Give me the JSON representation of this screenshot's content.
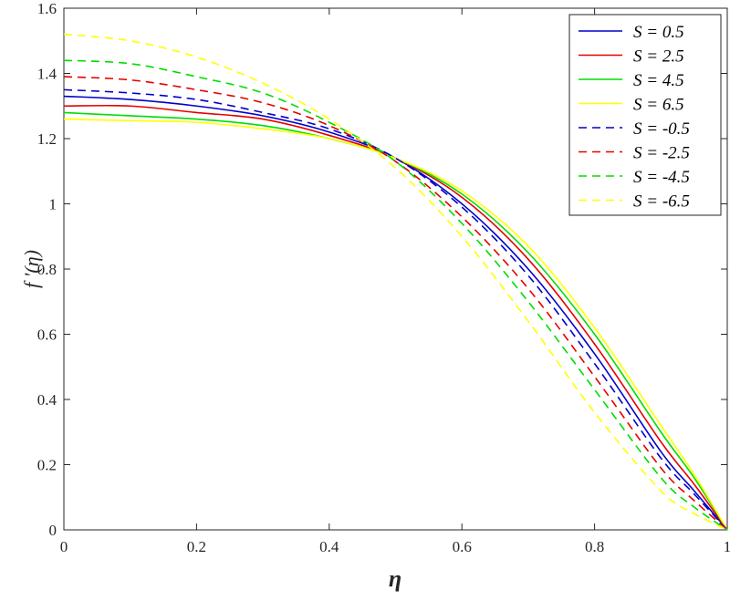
{
  "chart_data": {
    "type": "line",
    "title": "",
    "xlabel": "η",
    "ylabel": "f '(η)",
    "xlim": [
      0,
      1
    ],
    "ylim": [
      0,
      1.6
    ],
    "x_ticks": [
      "0",
      "0.2",
      "0.4",
      "0.6",
      "0.8",
      "1"
    ],
    "y_ticks": [
      "0",
      "0.2",
      "0.4",
      "0.6",
      "0.8",
      "1",
      "1.2",
      "1.4",
      "1.6"
    ],
    "grid": false,
    "legend_position": "top-right",
    "x": [
      0,
      0.1,
      0.2,
      0.3,
      0.4,
      0.5,
      0.6,
      0.7,
      0.8,
      0.9,
      0.95,
      1.0
    ],
    "series": [
      {
        "name": "S = 0.5",
        "color": "#0000cc",
        "dash": "solid",
        "values": [
          1.33,
          1.32,
          1.3,
          1.27,
          1.22,
          1.14,
          1.0,
          0.8,
          0.54,
          0.24,
          0.12,
          0.0
        ]
      },
      {
        "name": "S = 2.5",
        "color": "#e60000",
        "dash": "solid",
        "values": [
          1.3,
          1.3,
          1.28,
          1.26,
          1.21,
          1.14,
          1.02,
          0.83,
          0.57,
          0.27,
          0.14,
          0.0
        ]
      },
      {
        "name": "S = 4.5",
        "color": "#00dd00",
        "dash": "solid",
        "values": [
          1.28,
          1.27,
          1.26,
          1.24,
          1.2,
          1.14,
          1.03,
          0.85,
          0.6,
          0.3,
          0.16,
          0.0
        ]
      },
      {
        "name": "S = 6.5",
        "color": "#ffff00",
        "dash": "solid",
        "values": [
          1.26,
          1.255,
          1.25,
          1.23,
          1.2,
          1.14,
          1.04,
          0.87,
          0.62,
          0.32,
          0.17,
          0.0
        ]
      },
      {
        "name": "S = -0.5",
        "color": "#0000cc",
        "dash": "dashed",
        "values": [
          1.35,
          1.34,
          1.32,
          1.28,
          1.23,
          1.14,
          0.99,
          0.78,
          0.51,
          0.22,
          0.11,
          0.0
        ]
      },
      {
        "name": "S = -2.5",
        "color": "#e60000",
        "dash": "dashed",
        "values": [
          1.39,
          1.38,
          1.35,
          1.31,
          1.24,
          1.13,
          0.96,
          0.74,
          0.47,
          0.19,
          0.09,
          0.0
        ]
      },
      {
        "name": "S = -4.5",
        "color": "#00dd00",
        "dash": "dashed",
        "values": [
          1.44,
          1.43,
          1.39,
          1.34,
          1.25,
          1.13,
          0.94,
          0.7,
          0.43,
          0.16,
          0.07,
          0.0
        ]
      },
      {
        "name": "S = -6.5",
        "color": "#ffff00",
        "dash": "dashed",
        "values": [
          1.52,
          1.5,
          1.45,
          1.37,
          1.26,
          1.11,
          0.9,
          0.64,
          0.36,
          0.12,
          0.05,
          0.0
        ]
      }
    ]
  }
}
